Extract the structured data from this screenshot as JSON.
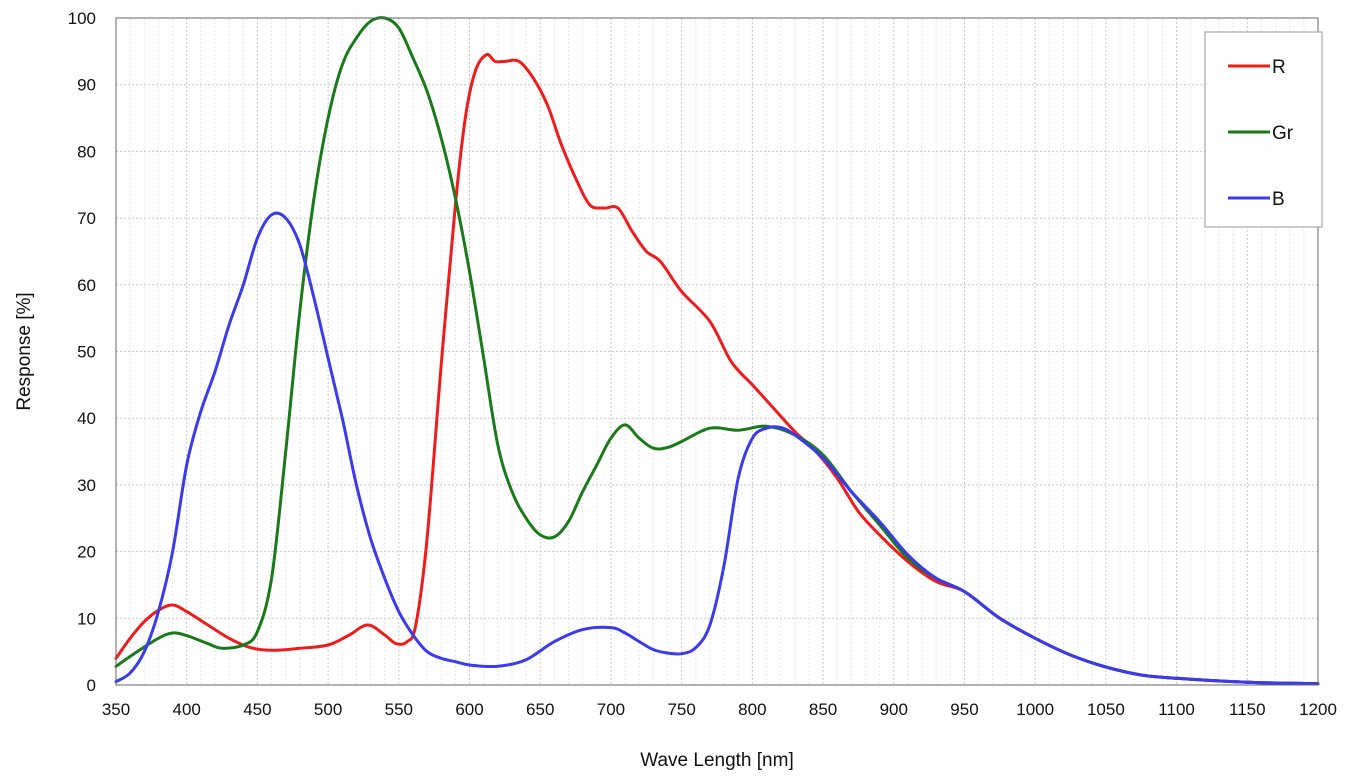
{
  "chart_data": {
    "type": "line",
    "title": "",
    "xlabel": "Wave Length [nm]",
    "ylabel": "Response  [%]",
    "xlim": [
      350,
      1200
    ],
    "ylim": [
      0,
      100
    ],
    "xticks": [
      350,
      400,
      450,
      500,
      550,
      600,
      650,
      700,
      750,
      800,
      850,
      900,
      950,
      1000,
      1050,
      1100,
      1150,
      1200
    ],
    "yticks": [
      0,
      10,
      20,
      30,
      40,
      50,
      60,
      70,
      80,
      90,
      100
    ],
    "grid": true,
    "legend_position": "top-right",
    "series": [
      {
        "name": "R",
        "color": "#ee1c1c",
        "points": [
          [
            350,
            4
          ],
          [
            360,
            7
          ],
          [
            370,
            9.5
          ],
          [
            380,
            11.2
          ],
          [
            390,
            12
          ],
          [
            400,
            11
          ],
          [
            415,
            9
          ],
          [
            430,
            7
          ],
          [
            445,
            5.6
          ],
          [
            460,
            5.2
          ],
          [
            480,
            5.5
          ],
          [
            500,
            6
          ],
          [
            515,
            7.5
          ],
          [
            528,
            9
          ],
          [
            540,
            7.5
          ],
          [
            548,
            6.2
          ],
          [
            556,
            6.5
          ],
          [
            562,
            9
          ],
          [
            570,
            22
          ],
          [
            580,
            48
          ],
          [
            590,
            72
          ],
          [
            597,
            85
          ],
          [
            604,
            92
          ],
          [
            612,
            94.5
          ],
          [
            618,
            93.5
          ],
          [
            625,
            93.5
          ],
          [
            635,
            93.5
          ],
          [
            645,
            91
          ],
          [
            655,
            87
          ],
          [
            665,
            81
          ],
          [
            675,
            76
          ],
          [
            685,
            72
          ],
          [
            695,
            71.5
          ],
          [
            705,
            71.5
          ],
          [
            715,
            68
          ],
          [
            725,
            65
          ],
          [
            735,
            63.5
          ],
          [
            750,
            59
          ],
          [
            770,
            54.5
          ],
          [
            785,
            48.5
          ],
          [
            800,
            45
          ],
          [
            815,
            41.5
          ],
          [
            830,
            38
          ],
          [
            845,
            35
          ],
          [
            860,
            31
          ],
          [
            875,
            26
          ],
          [
            890,
            22.5
          ],
          [
            910,
            18.5
          ],
          [
            930,
            15.5
          ],
          [
            950,
            14
          ],
          [
            975,
            10
          ],
          [
            1000,
            7
          ],
          [
            1025,
            4.5
          ],
          [
            1050,
            2.7
          ],
          [
            1075,
            1.5
          ],
          [
            1100,
            1
          ],
          [
            1150,
            0.4
          ],
          [
            1200,
            0.2
          ]
        ]
      },
      {
        "name": "Gr",
        "color": "#1a7a1a",
        "points": [
          [
            350,
            2.8
          ],
          [
            365,
            5
          ],
          [
            380,
            7
          ],
          [
            390,
            7.8
          ],
          [
            400,
            7.4
          ],
          [
            415,
            6.2
          ],
          [
            425,
            5.5
          ],
          [
            440,
            6
          ],
          [
            450,
            8
          ],
          [
            460,
            16
          ],
          [
            470,
            35
          ],
          [
            480,
            56
          ],
          [
            490,
            73
          ],
          [
            500,
            85
          ],
          [
            510,
            93
          ],
          [
            520,
            97
          ],
          [
            530,
            99.5
          ],
          [
            540,
            100
          ],
          [
            550,
            98.5
          ],
          [
            560,
            94
          ],
          [
            570,
            89
          ],
          [
            580,
            82
          ],
          [
            590,
            73
          ],
          [
            600,
            62
          ],
          [
            610,
            49
          ],
          [
            620,
            36
          ],
          [
            630,
            29
          ],
          [
            640,
            25
          ],
          [
            650,
            22.5
          ],
          [
            660,
            22.2
          ],
          [
            670,
            24.5
          ],
          [
            680,
            29
          ],
          [
            690,
            33
          ],
          [
            700,
            37
          ],
          [
            710,
            39
          ],
          [
            720,
            37
          ],
          [
            730,
            35.5
          ],
          [
            740,
            35.6
          ],
          [
            750,
            36.5
          ],
          [
            770,
            38.5
          ],
          [
            790,
            38.2
          ],
          [
            810,
            38.8
          ],
          [
            830,
            37.5
          ],
          [
            850,
            34.5
          ],
          [
            870,
            29
          ],
          [
            890,
            24
          ],
          [
            910,
            19
          ],
          [
            930,
            16
          ],
          [
            950,
            14
          ],
          [
            975,
            10
          ],
          [
            1000,
            7
          ],
          [
            1025,
            4.5
          ],
          [
            1050,
            2.7
          ],
          [
            1075,
            1.5
          ],
          [
            1100,
            1
          ],
          [
            1150,
            0.4
          ],
          [
            1200,
            0.2
          ]
        ]
      },
      {
        "name": "B",
        "color": "#3a3aee",
        "points": [
          [
            350,
            0.5
          ],
          [
            360,
            1.8
          ],
          [
            370,
            5
          ],
          [
            380,
            11
          ],
          [
            390,
            20
          ],
          [
            400,
            33
          ],
          [
            410,
            41
          ],
          [
            420,
            47
          ],
          [
            430,
            54
          ],
          [
            440,
            60
          ],
          [
            450,
            67
          ],
          [
            460,
            70.5
          ],
          [
            470,
            70
          ],
          [
            480,
            66
          ],
          [
            490,
            58
          ],
          [
            500,
            49
          ],
          [
            510,
            40
          ],
          [
            520,
            30
          ],
          [
            530,
            22
          ],
          [
            540,
            16
          ],
          [
            550,
            11
          ],
          [
            560,
            7.5
          ],
          [
            570,
            5
          ],
          [
            580,
            4
          ],
          [
            590,
            3.5
          ],
          [
            600,
            3
          ],
          [
            620,
            2.8
          ],
          [
            640,
            3.8
          ],
          [
            660,
            6.5
          ],
          [
            680,
            8.3
          ],
          [
            700,
            8.6
          ],
          [
            710,
            7.8
          ],
          [
            720,
            6.5
          ],
          [
            730,
            5.3
          ],
          [
            740,
            4.8
          ],
          [
            750,
            4.7
          ],
          [
            760,
            5.6
          ],
          [
            770,
            9
          ],
          [
            780,
            18
          ],
          [
            790,
            31
          ],
          [
            800,
            37
          ],
          [
            810,
            38.5
          ],
          [
            820,
            38.6
          ],
          [
            830,
            37.5
          ],
          [
            850,
            34
          ],
          [
            870,
            29
          ],
          [
            890,
            24.5
          ],
          [
            910,
            19.5
          ],
          [
            930,
            16
          ],
          [
            950,
            14
          ],
          [
            975,
            10
          ],
          [
            1000,
            7
          ],
          [
            1025,
            4.5
          ],
          [
            1050,
            2.7
          ],
          [
            1075,
            1.5
          ],
          [
            1100,
            1
          ],
          [
            1150,
            0.4
          ],
          [
            1200,
            0.2
          ]
        ]
      }
    ]
  }
}
